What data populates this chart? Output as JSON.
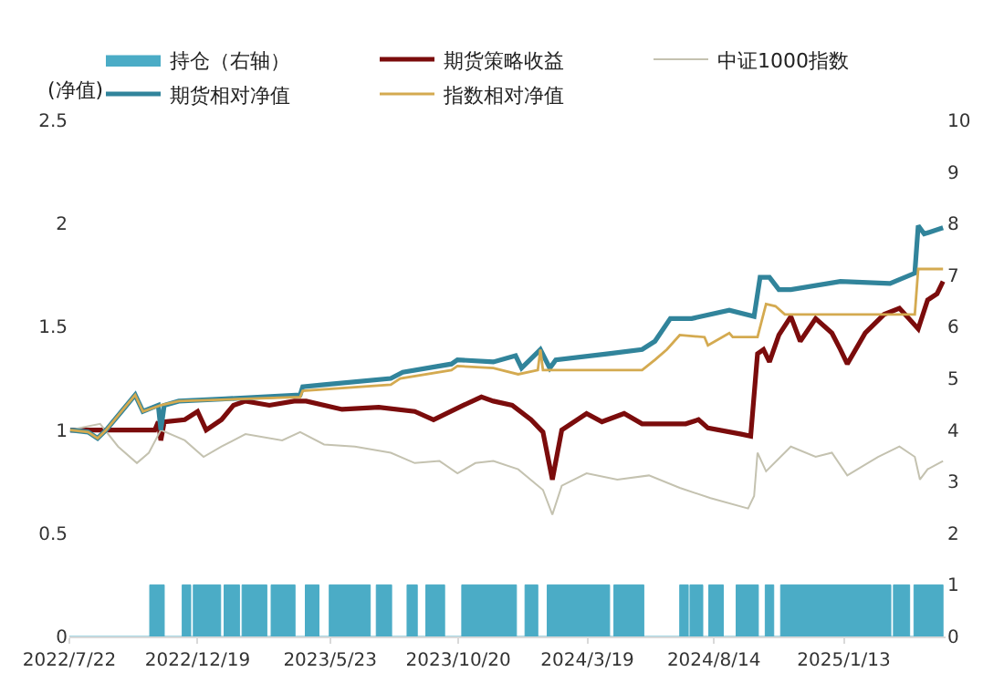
{
  "chart_data": {
    "type": "line",
    "ylabel": "(净值)",
    "xlim": [
      "2022-07-22",
      "2025-05-12"
    ],
    "xticks": [
      {
        "value": "2022-07-22",
        "label": "2022/7/22"
      },
      {
        "value": "2022-12-19",
        "label": "2022/12/19"
      },
      {
        "value": "2023-05-23",
        "label": "2023/5/23"
      },
      {
        "value": "2023-10-20",
        "label": "2023/10/20"
      },
      {
        "value": "2024-03-19",
        "label": "2024/3/19"
      },
      {
        "value": "2024-08-14",
        "label": "2024/8/14"
      },
      {
        "value": "2025-01-13",
        "label": "2025/1/13"
      }
    ],
    "ylim": [
      0,
      2.5
    ],
    "yticks": [
      0,
      0.5,
      1,
      1.5,
      2,
      2.5
    ],
    "y2lim": [
      0,
      10
    ],
    "y2ticks": [
      0,
      1,
      2,
      3,
      4,
      5,
      6,
      7,
      8,
      9,
      10
    ],
    "legend": "top",
    "series": [
      {
        "name": "持仓（右轴）",
        "type": "area",
        "axis": "y2",
        "color": "#4bacc6",
        "x": [
          "2022-07-22",
          "2022-10-24",
          "2022-10-24",
          "2022-11-10",
          "2022-11-10",
          "2022-12-01",
          "2022-12-01",
          "2022-12-11",
          "2022-12-11",
          "2022-12-14",
          "2022-12-14",
          "2023-01-15",
          "2023-01-15",
          "2023-01-19",
          "2023-01-19",
          "2023-02-06",
          "2023-02-06",
          "2023-02-09",
          "2023-02-09",
          "2023-03-10",
          "2023-03-10",
          "2023-03-15",
          "2023-03-15",
          "2023-04-12",
          "2023-04-12",
          "2023-04-24",
          "2023-04-24",
          "2023-05-10",
          "2023-05-10",
          "2023-05-22",
          "2023-05-22",
          "2023-07-09",
          "2023-07-09",
          "2023-07-16",
          "2023-07-16",
          "2023-08-03",
          "2023-08-03",
          "2023-08-21",
          "2023-08-21",
          "2023-09-02",
          "2023-09-02",
          "2023-09-12",
          "2023-09-12",
          "2023-10-04",
          "2023-10-04",
          "2023-10-24",
          "2023-10-24",
          "2023-12-27",
          "2023-12-27",
          "2024-01-06",
          "2024-01-06",
          "2024-01-21",
          "2024-01-21",
          "2024-02-01",
          "2024-02-01",
          "2024-04-14",
          "2024-04-14",
          "2024-04-19",
          "2024-04-19",
          "2024-05-24",
          "2024-05-24",
          "2024-07-05",
          "2024-07-05",
          "2024-07-15",
          "2024-07-15",
          "2024-07-17",
          "2024-07-17",
          "2024-08-01",
          "2024-08-01",
          "2024-08-08",
          "2024-08-08",
          "2024-08-25",
          "2024-08-25",
          "2024-09-09",
          "2024-09-09",
          "2024-10-05",
          "2024-10-05",
          "2024-10-13",
          "2024-10-13",
          "2024-10-23",
          "2024-10-23",
          "2024-10-31",
          "2024-10-31",
          "2025-03-09",
          "2025-03-09",
          "2025-03-12",
          "2025-03-12",
          "2025-03-31",
          "2025-03-31",
          "2025-04-05",
          "2025-04-05",
          "2025-05-09",
          "2025-05-09"
        ],
        "values": [
          0,
          0,
          1,
          1,
          0,
          0,
          1,
          1,
          0,
          0,
          1,
          1,
          0,
          0,
          1,
          1,
          0,
          0,
          1,
          1,
          0,
          0,
          1,
          1,
          0,
          0,
          1,
          1,
          0,
          0,
          1,
          1,
          0,
          0,
          1,
          1,
          0,
          0,
          1,
          1,
          0,
          0,
          1,
          1,
          0,
          0,
          1,
          1,
          0,
          0,
          1,
          1,
          0,
          0,
          1,
          1,
          0,
          0,
          1,
          1,
          0,
          0,
          1,
          1,
          0,
          0,
          1,
          1,
          0,
          0,
          1,
          1,
          0,
          0,
          1,
          1,
          0,
          0,
          1,
          1,
          0,
          0,
          1,
          1,
          0,
          0,
          1,
          1,
          0,
          0,
          1,
          1,
          0
        ]
      },
      {
        "name": "期货策略收益",
        "color": "#7b0c0c",
        "x": [
          "2022-07-23",
          "2022-10-30",
          "2022-11-03",
          "2022-11-06",
          "2022-11-10",
          "2022-12-04",
          "2022-12-19",
          "2022-12-29",
          "2023-01-16",
          "2023-01-30",
          "2023-02-13",
          "2023-03-13",
          "2023-04-11",
          "2023-04-25",
          "2023-06-06",
          "2023-07-19",
          "2023-08-30",
          "2023-09-21",
          "2023-10-26",
          "2023-11-16",
          "2023-11-30",
          "2023-12-22",
          "2024-01-13",
          "2024-01-27",
          "2024-02-07",
          "2024-02-18",
          "2024-03-18",
          "2024-04-05",
          "2024-05-01",
          "2024-05-22",
          "2024-07-12",
          "2024-07-27",
          "2024-08-07",
          "2024-09-15",
          "2024-09-26",
          "2024-10-04",
          "2024-10-11",
          "2024-10-18",
          "2024-10-29",
          "2024-11-12",
          "2024-11-23",
          "2024-12-11",
          "2024-12-30",
          "2025-01-09",
          "2025-01-17",
          "2025-02-07",
          "2025-03-01",
          "2025-03-19",
          "2025-03-30",
          "2025-04-10",
          "2025-04-21",
          "2025-05-02",
          "2025-05-09"
        ],
        "values": [
          1.0,
          1.0,
          1.04,
          0.95,
          1.04,
          1.05,
          1.09,
          1.0,
          1.05,
          1.12,
          1.14,
          1.12,
          1.14,
          1.14,
          1.1,
          1.11,
          1.09,
          1.05,
          1.12,
          1.16,
          1.14,
          1.12,
          1.05,
          0.99,
          0.76,
          1.0,
          1.08,
          1.04,
          1.08,
          1.03,
          1.03,
          1.05,
          1.01,
          0.98,
          0.97,
          1.37,
          1.39,
          1.33,
          1.46,
          1.55,
          1.43,
          1.54,
          1.47,
          1.39,
          1.32,
          1.47,
          1.56,
          1.59,
          1.54,
          1.49,
          1.63,
          1.66,
          1.72
        ]
      },
      {
        "name": "中证1000指数",
        "color": "#c4c2b0",
        "x": [
          "2022-07-23",
          "2022-08-27",
          "2022-09-17",
          "2022-10-09",
          "2022-10-23",
          "2022-11-06",
          "2022-12-04",
          "2022-12-26",
          "2023-01-16",
          "2023-02-13",
          "2023-03-28",
          "2023-04-18",
          "2023-05-16",
          "2023-06-21",
          "2023-08-02",
          "2023-08-30",
          "2023-09-28",
          "2023-10-19",
          "2023-11-09",
          "2023-11-30",
          "2023-12-29",
          "2024-01-27",
          "2024-02-07",
          "2024-02-18",
          "2024-03-18",
          "2024-04-23",
          "2024-05-30",
          "2024-07-05",
          "2024-08-10",
          "2024-09-23",
          "2024-09-30",
          "2024-10-04",
          "2024-10-14",
          "2024-11-12",
          "2024-12-11",
          "2024-12-30",
          "2025-01-17",
          "2025-02-22",
          "2025-03-19",
          "2025-04-06",
          "2025-04-12",
          "2025-04-21",
          "2025-05-09"
        ],
        "values": [
          1.0,
          1.03,
          0.92,
          0.84,
          0.89,
          1.0,
          0.95,
          0.87,
          0.92,
          0.98,
          0.95,
          0.99,
          0.93,
          0.92,
          0.89,
          0.84,
          0.85,
          0.79,
          0.84,
          0.85,
          0.81,
          0.71,
          0.59,
          0.73,
          0.79,
          0.76,
          0.78,
          0.72,
          0.67,
          0.62,
          0.68,
          0.89,
          0.8,
          0.92,
          0.87,
          0.89,
          0.78,
          0.87,
          0.92,
          0.87,
          0.76,
          0.81,
          0.85
        ]
      },
      {
        "name": "期货相对净值",
        "color": "#31849b",
        "x": [
          "2022-07-23",
          "2022-08-13",
          "2022-08-24",
          "2022-09-03",
          "2022-09-21",
          "2022-10-07",
          "2022-10-16",
          "2022-11-03",
          "2022-11-06",
          "2022-11-10",
          "2022-11-27",
          "2023-01-16",
          "2023-04-18",
          "2023-04-21",
          "2023-05-16",
          "2023-08-02",
          "2023-08-16",
          "2023-10-12",
          "2023-10-19",
          "2023-11-30",
          "2023-12-26",
          "2024-01-02",
          "2024-01-24",
          "2024-02-04",
          "2024-02-11",
          "2024-04-13",
          "2024-05-22",
          "2024-06-06",
          "2024-06-24",
          "2024-07-19",
          "2024-09-01",
          "2024-09-30",
          "2024-10-07",
          "2024-10-18",
          "2024-10-29",
          "2024-11-12",
          "2025-01-09",
          "2025-03-08",
          "2025-04-06",
          "2025-04-10",
          "2025-04-17",
          "2025-05-09"
        ],
        "values": [
          1.0,
          0.99,
          0.96,
          1.0,
          1.09,
          1.17,
          1.09,
          1.12,
          1.0,
          1.12,
          1.14,
          1.15,
          1.17,
          1.21,
          1.22,
          1.25,
          1.28,
          1.32,
          1.34,
          1.33,
          1.36,
          1.3,
          1.39,
          1.3,
          1.34,
          1.37,
          1.39,
          1.43,
          1.54,
          1.54,
          1.58,
          1.55,
          1.74,
          1.74,
          1.68,
          1.68,
          1.72,
          1.71,
          1.76,
          1.99,
          1.95,
          1.98
        ]
      },
      {
        "name": "指数相对净值",
        "color": "#d4aa50",
        "x": [
          "2022-07-23",
          "2022-08-13",
          "2022-08-24",
          "2022-09-03",
          "2022-09-21",
          "2022-10-07",
          "2022-10-16",
          "2022-11-06",
          "2022-11-27",
          "2023-04-18",
          "2023-04-21",
          "2023-08-02",
          "2023-08-13",
          "2023-10-12",
          "2023-10-19",
          "2023-11-30",
          "2023-12-29",
          "2024-01-21",
          "2024-01-24",
          "2024-01-27",
          "2024-05-22",
          "2024-06-06",
          "2024-06-20",
          "2024-07-05",
          "2024-08-03",
          "2024-08-07",
          "2024-09-01",
          "2024-09-05",
          "2024-10-04",
          "2024-10-14",
          "2024-10-25",
          "2024-11-05",
          "2025-04-06",
          "2025-04-10",
          "2025-05-09"
        ],
        "values": [
          1.0,
          0.99,
          0.96,
          1.0,
          1.09,
          1.17,
          1.09,
          1.12,
          1.14,
          1.16,
          1.19,
          1.22,
          1.25,
          1.29,
          1.31,
          1.3,
          1.27,
          1.29,
          1.39,
          1.29,
          1.29,
          1.34,
          1.39,
          1.46,
          1.45,
          1.41,
          1.47,
          1.45,
          1.45,
          1.61,
          1.6,
          1.56,
          1.56,
          1.78,
          1.78
        ]
      }
    ]
  }
}
